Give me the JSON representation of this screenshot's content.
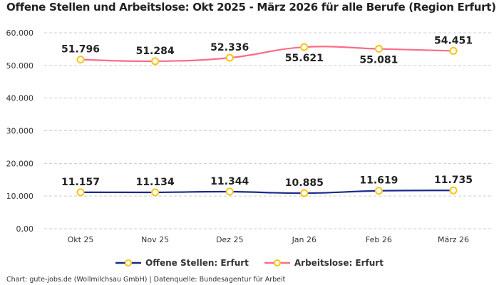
{
  "chart_data": {
    "type": "line",
    "title": "Offene Stellen und Arbeitslose: Okt 2025 - März 2026 für alle Berufe (Region Erfurt)",
    "categories": [
      "Okt 25",
      "Nov 25",
      "Dez 25",
      "Jan 26",
      "Feb 26",
      "März 26"
    ],
    "ylim": [
      0,
      60000
    ],
    "yticks": [
      0,
      10000,
      20000,
      30000,
      40000,
      50000,
      60000
    ],
    "ytick_labels": [
      "0,00",
      "10.000",
      "20.000",
      "30.000",
      "40.000",
      "50.000",
      "60.000"
    ],
    "grid": true,
    "legend_position": "bottom",
    "series": [
      {
        "name": "Offene Stellen: Erfurt",
        "color": "#1a2a8c",
        "values": [
          11157,
          11134,
          11344,
          10885,
          11619,
          11735
        ],
        "labels": [
          "11.157",
          "11.134",
          "11.344",
          "10.885",
          "11.619",
          "11.735"
        ]
      },
      {
        "name": "Arbeitslose: Erfurt",
        "color": "#ff6b86",
        "values": [
          51796,
          51284,
          52336,
          55621,
          55081,
          54451
        ],
        "labels": [
          "51.796",
          "51.284",
          "52.336",
          "55.621",
          "55.081",
          "54.451"
        ]
      }
    ],
    "marker_color": "#f5c518"
  },
  "credit": "Chart: gute-jobs.de (Wollmilchsau GmbH) | Datenquelle: Bundesagentur für Arbeit"
}
